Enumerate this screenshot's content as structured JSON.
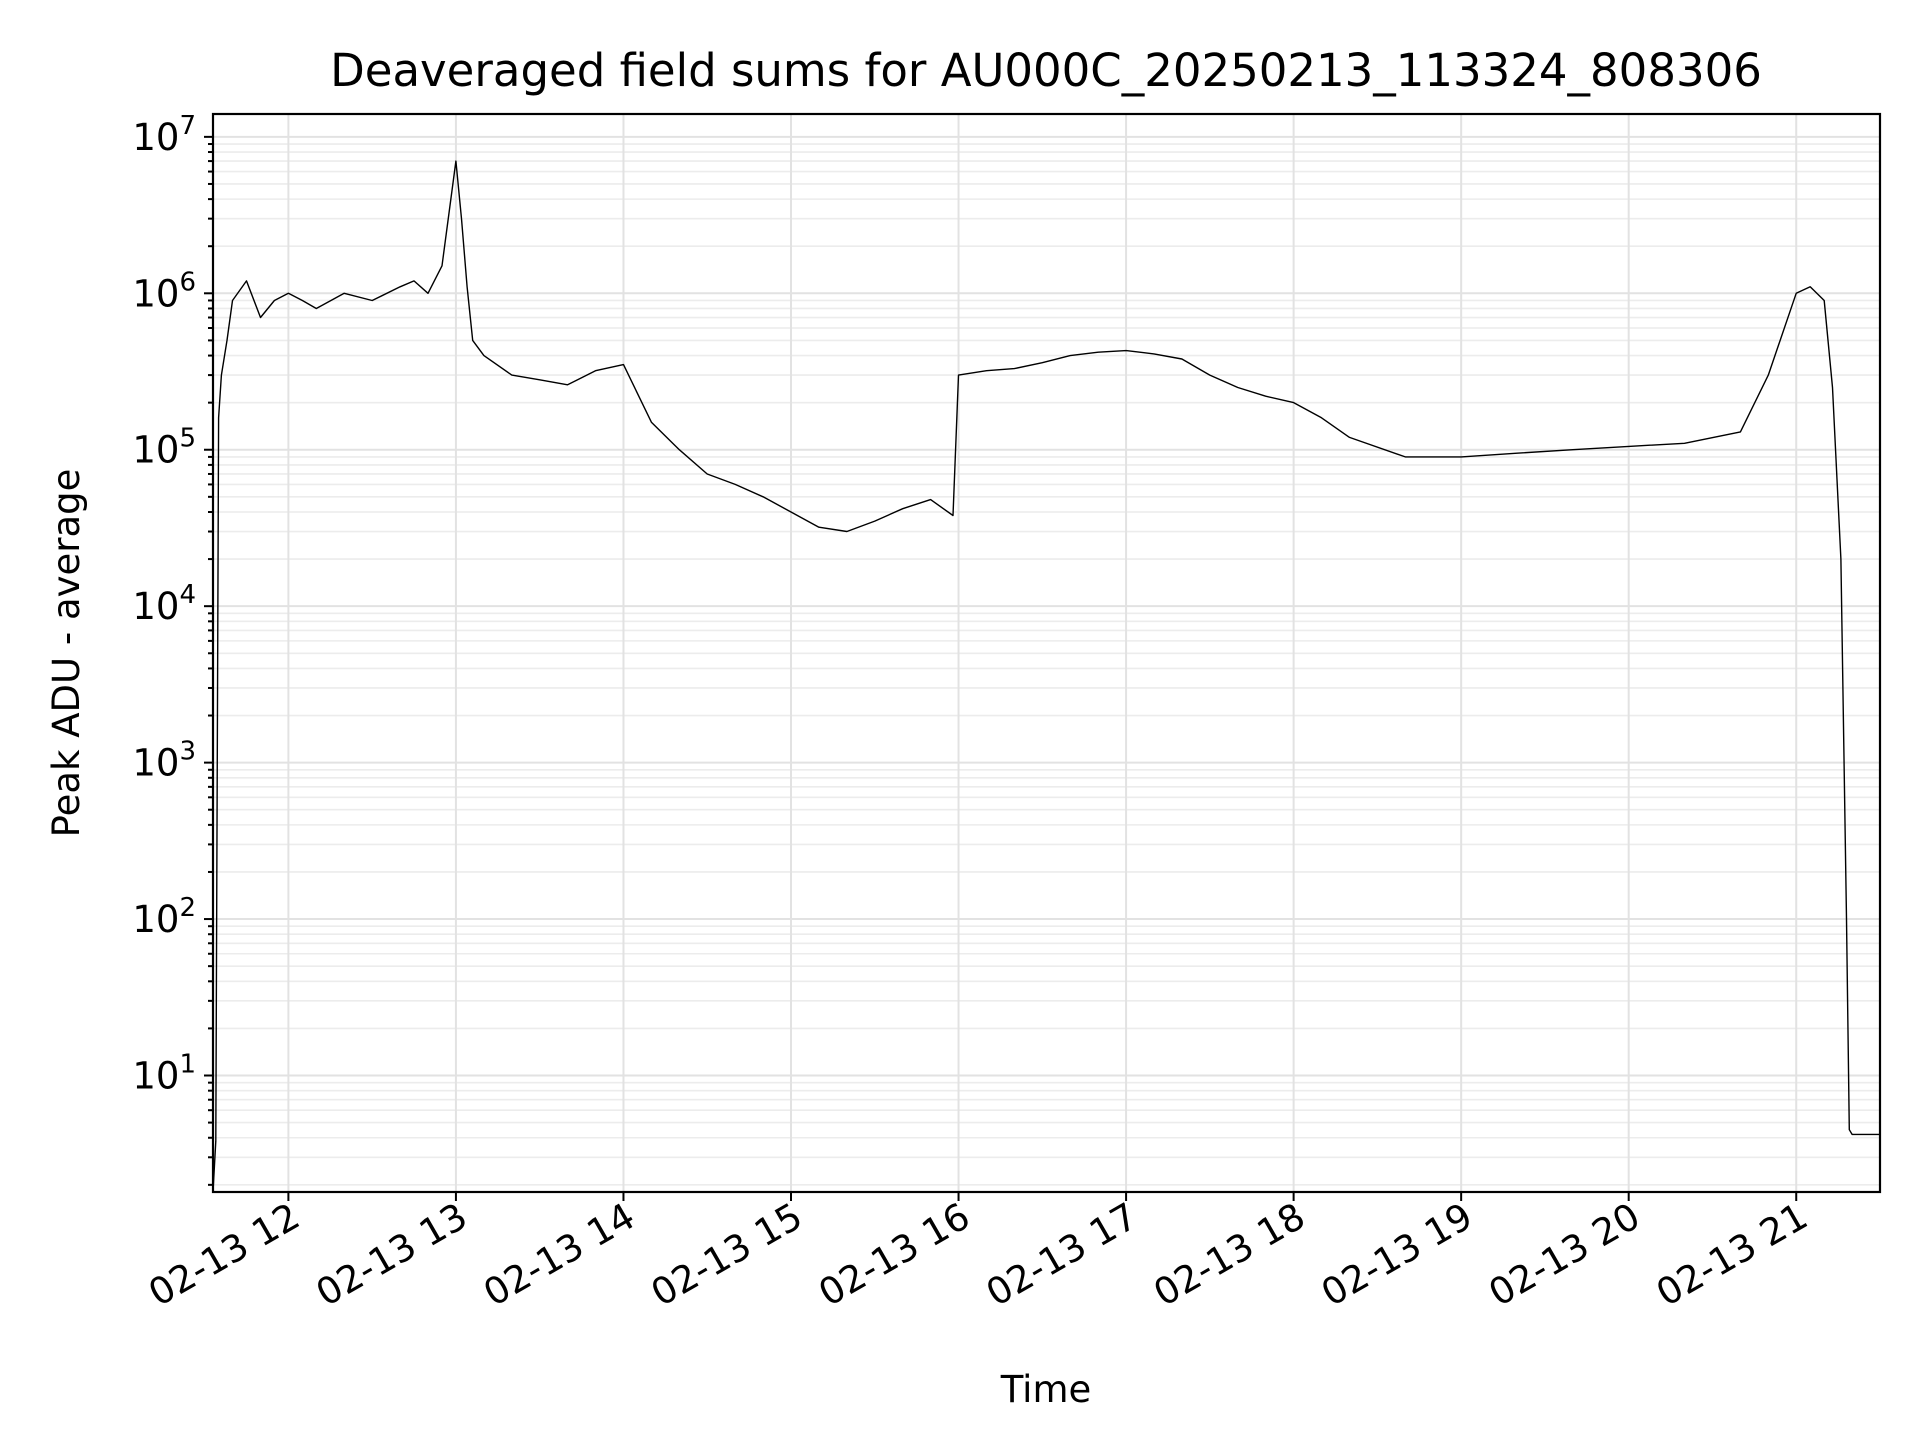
{
  "chart_data": {
    "type": "line",
    "title": "Deaveraged field sums for AU000C_20250213_113324_808306",
    "xlabel": "Time",
    "ylabel": "Peak ADU - average",
    "yscale": "log",
    "ylim": [
      1.8,
      14000000
    ],
    "xlim": [
      "02-13 11:33",
      "02-13 21:30"
    ],
    "grid": true,
    "x_tick_labels": [
      "02-13 12",
      "02-13 13",
      "02-13 14",
      "02-13 15",
      "02-13 16",
      "02-13 17",
      "02-13 18",
      "02-13 19",
      "02-13 20",
      "02-13 21"
    ],
    "y_tick_labels": [
      {
        "base": "10",
        "exp": "1"
      },
      {
        "base": "10",
        "exp": "2"
      },
      {
        "base": "10",
        "exp": "3"
      },
      {
        "base": "10",
        "exp": "4"
      },
      {
        "base": "10",
        "exp": "5"
      },
      {
        "base": "10",
        "exp": "6"
      },
      {
        "base": "10",
        "exp": "7"
      }
    ],
    "series": [
      {
        "color": "#000000",
        "x": [
          "02-13 11:33",
          "02-13 11:34",
          "02-13 11:35",
          "02-13 11:36",
          "02-13 11:38",
          "02-13 11:40",
          "02-13 11:45",
          "02-13 11:50",
          "02-13 11:55",
          "02-13 12:00",
          "02-13 12:05",
          "02-13 12:10",
          "02-13 12:20",
          "02-13 12:30",
          "02-13 12:40",
          "02-13 12:45",
          "02-13 12:50",
          "02-13 12:55",
          "02-13 13:00",
          "02-13 13:02",
          "02-13 13:04",
          "02-13 13:06",
          "02-13 13:10",
          "02-13 13:20",
          "02-13 13:30",
          "02-13 13:40",
          "02-13 13:50",
          "02-13 14:00",
          "02-13 14:10",
          "02-13 14:20",
          "02-13 14:30",
          "02-13 14:40",
          "02-13 14:50",
          "02-13 15:00",
          "02-13 15:10",
          "02-13 15:20",
          "02-13 15:30",
          "02-13 15:40",
          "02-13 15:50",
          "02-13 15:58",
          "02-13 16:00",
          "02-13 16:10",
          "02-13 16:20",
          "02-13 16:30",
          "02-13 16:40",
          "02-13 16:50",
          "02-13 17:00",
          "02-13 17:10",
          "02-13 17:20",
          "02-13 17:30",
          "02-13 17:40",
          "02-13 17:50",
          "02-13 18:00",
          "02-13 18:10",
          "02-13 18:20",
          "02-13 18:40",
          "02-13 19:00",
          "02-13 19:20",
          "02-13 19:40",
          "02-13 20:00",
          "02-13 20:20",
          "02-13 20:40",
          "02-13 20:50",
          "02-13 21:00",
          "02-13 21:05",
          "02-13 21:10",
          "02-13 21:13",
          "02-13 21:16",
          "02-13 21:18",
          "02-13 21:19",
          "02-13 21:20",
          "02-13 21:25",
          "02-13 21:30"
        ],
        "y": [
          1.8,
          3.8,
          160000,
          300000,
          500000,
          900000,
          1200000,
          700000,
          900000,
          1000000,
          900000,
          800000,
          1000000,
          900000,
          1100000,
          1200000,
          1000000,
          1500000,
          7000000,
          3000000,
          1100000,
          500000,
          400000,
          300000,
          280000,
          260000,
          320000,
          350000,
          150000,
          100000,
          70000,
          60000,
          50000,
          40000,
          32000,
          30000,
          35000,
          42000,
          48000,
          38000,
          300000,
          320000,
          330000,
          360000,
          400000,
          420000,
          430000,
          410000,
          380000,
          300000,
          250000,
          220000,
          200000,
          160000,
          120000,
          90000,
          90000,
          95000,
          100000,
          105000,
          110000,
          130000,
          300000,
          1000000,
          1100000,
          900000,
          250000,
          20000,
          100,
          4.5,
          4.2,
          4.2,
          4.2
        ]
      }
    ]
  }
}
